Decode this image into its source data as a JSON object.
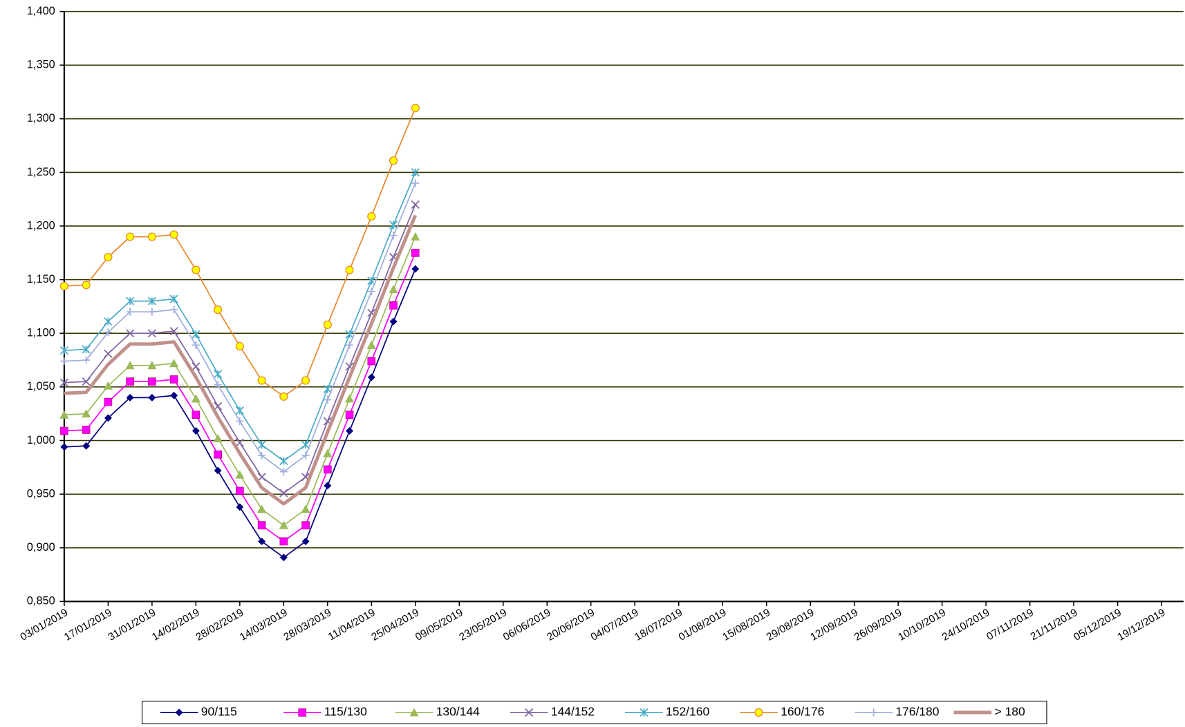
{
  "chart_data": {
    "type": "line",
    "x": [
      "03/01/2019",
      "10/01/2019",
      "17/01/2019",
      "24/01/2019",
      "31/01/2019",
      "07/02/2019",
      "14/02/2019",
      "21/02/2019",
      "28/02/2019",
      "07/03/2019",
      "14/03/2019",
      "21/03/2019",
      "28/03/2019",
      "04/04/2019",
      "11/04/2019",
      "18/04/2019",
      "25/04/2019"
    ],
    "xlim": [
      "03/01/2019",
      "26/12/2019"
    ],
    "xticks": [
      "03/01/2019",
      "17/01/2019",
      "31/01/2019",
      "14/02/2019",
      "28/02/2019",
      "14/03/2019",
      "28/03/2019",
      "11/04/2019",
      "25/04/2019",
      "09/05/2019",
      "23/05/2019",
      "06/06/2019",
      "20/06/2019",
      "04/07/2019",
      "18/07/2019",
      "01/08/2019",
      "15/08/2019",
      "29/08/2019",
      "12/09/2019",
      "26/09/2019",
      "10/10/2019",
      "24/10/2019",
      "07/11/2019",
      "21/11/2019",
      "05/12/2019",
      "19/12/2019"
    ],
    "ylim": [
      0.85,
      1.4
    ],
    "yticks": [
      {
        "value": 0.85,
        "label": "0,850"
      },
      {
        "value": 0.9,
        "label": "0,900"
      },
      {
        "value": 0.95,
        "label": "0,950"
      },
      {
        "value": 1.0,
        "label": "1,000"
      },
      {
        "value": 1.05,
        "label": "1,050"
      },
      {
        "value": 1.1,
        "label": "1,100"
      },
      {
        "value": 1.15,
        "label": "1,150"
      },
      {
        "value": 1.2,
        "label": "1,200"
      },
      {
        "value": 1.25,
        "label": "1,250"
      },
      {
        "value": 1.3,
        "label": "1,300"
      },
      {
        "value": 1.35,
        "label": "1,350"
      },
      {
        "value": 1.4,
        "label": "1,400"
      }
    ],
    "grid": true,
    "legend": "bottom",
    "series": [
      {
        "name": "90/115",
        "color": "#000080",
        "marker": "diamond",
        "values": [
          0.994,
          0.995,
          1.021,
          1.04,
          1.04,
          1.042,
          1.009,
          0.972,
          0.938,
          0.906,
          0.891,
          0.906,
          0.958,
          1.009,
          1.059,
          1.111,
          1.16
        ]
      },
      {
        "name": "115/130",
        "color": "#ff00ff",
        "marker": "square",
        "values": [
          1.009,
          1.01,
          1.036,
          1.055,
          1.055,
          1.057,
          1.024,
          0.987,
          0.953,
          0.921,
          0.906,
          0.921,
          0.973,
          1.024,
          1.074,
          1.126,
          1.175
        ]
      },
      {
        "name": "130/144",
        "color": "#9bbb59",
        "marker": "triangle",
        "values": [
          1.024,
          1.025,
          1.051,
          1.07,
          1.07,
          1.072,
          1.039,
          1.002,
          0.968,
          0.936,
          0.921,
          0.936,
          0.988,
          1.039,
          1.089,
          1.141,
          1.19
        ]
      },
      {
        "name": "144/152",
        "color": "#8064a2",
        "marker": "x",
        "values": [
          1.054,
          1.055,
          1.081,
          1.1,
          1.1,
          1.102,
          1.069,
          1.032,
          0.998,
          0.966,
          0.951,
          0.966,
          1.018,
          1.069,
          1.119,
          1.171,
          1.22
        ]
      },
      {
        "name": "152/160",
        "color": "#4bacc6",
        "marker": "star",
        "values": [
          1.084,
          1.085,
          1.111,
          1.13,
          1.13,
          1.132,
          1.099,
          1.062,
          1.028,
          0.996,
          0.981,
          0.996,
          1.048,
          1.099,
          1.149,
          1.201,
          1.25
        ]
      },
      {
        "name": "160/176",
        "color": "#e8892c",
        "marker": "circle",
        "values": [
          1.144,
          1.145,
          1.171,
          1.19,
          1.19,
          1.192,
          1.159,
          1.122,
          1.088,
          1.056,
          1.041,
          1.056,
          1.108,
          1.159,
          1.209,
          1.261,
          1.31
        ]
      },
      {
        "name": "176/180",
        "color": "#9eaede",
        "marker": "plus",
        "values": [
          1.074,
          1.075,
          1.101,
          1.12,
          1.12,
          1.122,
          1.089,
          1.052,
          1.018,
          0.986,
          0.971,
          0.986,
          1.038,
          1.089,
          1.139,
          1.191,
          1.24
        ]
      },
      {
        "name": "> 180",
        "color": "#c0908a",
        "marker": "none",
        "values": [
          1.044,
          1.045,
          1.071,
          1.09,
          1.09,
          1.092,
          1.059,
          1.022,
          0.988,
          0.956,
          0.941,
          0.956,
          1.008,
          1.059,
          1.109,
          1.161,
          1.21
        ]
      }
    ]
  }
}
